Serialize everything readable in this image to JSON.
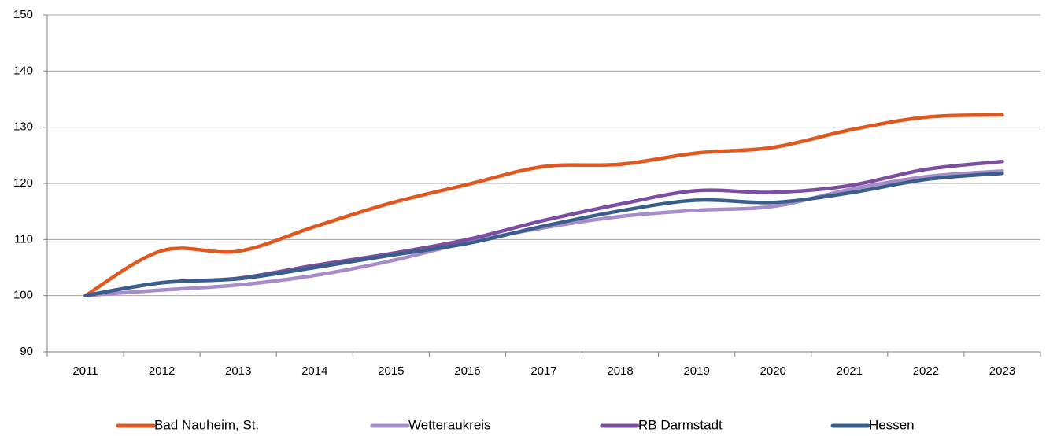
{
  "chart_data": {
    "type": "line",
    "categories": [
      "2011",
      "2012",
      "2013",
      "2014",
      "2015",
      "2016",
      "2017",
      "2018",
      "2019",
      "2020",
      "2021",
      "2022",
      "2023"
    ],
    "series": [
      {
        "name": "Bad Nauheim, St.",
        "color": "#e0571f",
        "values": [
          100,
          108.0,
          107.9,
          112.3,
          116.5,
          119.8,
          123.0,
          123.4,
          125.4,
          126.4,
          129.5,
          131.8,
          132.2
        ]
      },
      {
        "name": "Wetteraukreis",
        "color": "#a68cc9",
        "values": [
          100,
          101.0,
          101.9,
          103.6,
          106.2,
          109.5,
          112.1,
          114.1,
          115.2,
          115.9,
          118.9,
          121.2,
          122.2
        ]
      },
      {
        "name": "RB Darmstadt",
        "color": "#7b4ea1",
        "values": [
          100,
          102.3,
          103.1,
          105.4,
          107.5,
          110.0,
          113.4,
          116.3,
          118.7,
          118.4,
          119.6,
          122.5,
          123.9
        ]
      },
      {
        "name": "Hessen",
        "color": "#3a5e8c",
        "values": [
          100,
          102.3,
          103.0,
          105.0,
          107.2,
          109.3,
          112.4,
          115.1,
          117.0,
          116.6,
          118.3,
          120.7,
          121.8
        ]
      }
    ],
    "ylim": [
      90,
      150
    ],
    "yticks": [
      90,
      100,
      110,
      120,
      130,
      140,
      150
    ],
    "grid": true,
    "legend": "bottom"
  }
}
